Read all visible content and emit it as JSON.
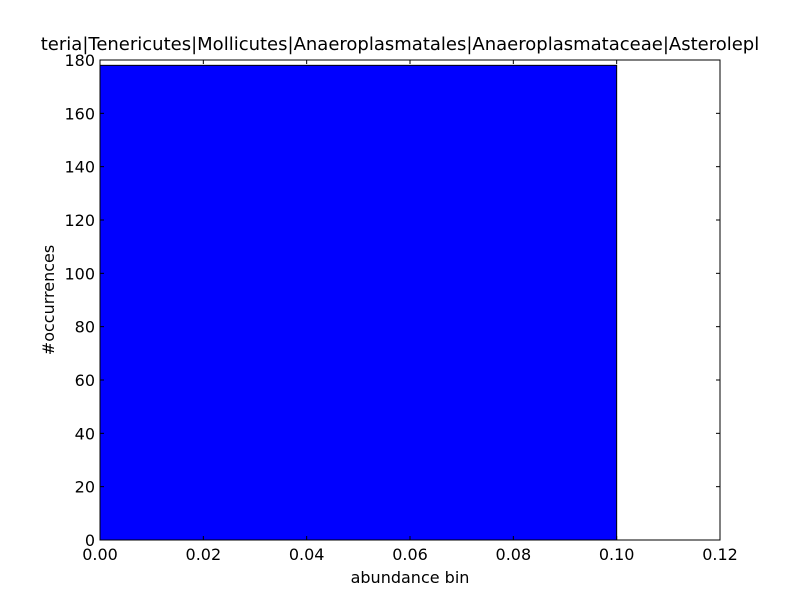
{
  "chart_data": {
    "type": "bar",
    "title": "teria|Tenericutes|Mollicutes|Anaeroplasmatales|Anaeroplasmataceae|Asterolepl",
    "xlabel": "abundance bin",
    "ylabel": "#occurrences",
    "xlim": [
      0,
      0.12
    ],
    "ylim": [
      0,
      180
    ],
    "xticks": [
      "0.00",
      "0.02",
      "0.04",
      "0.06",
      "0.08",
      "0.10",
      "0.12"
    ],
    "yticks": [
      "0",
      "20",
      "40",
      "60",
      "80",
      "100",
      "120",
      "140",
      "160",
      "180"
    ],
    "bars": [
      {
        "x_start": 0.0,
        "x_end": 0.1,
        "value": 178
      }
    ],
    "bar_color": "#0000ff",
    "grid": false,
    "legend": "none"
  }
}
